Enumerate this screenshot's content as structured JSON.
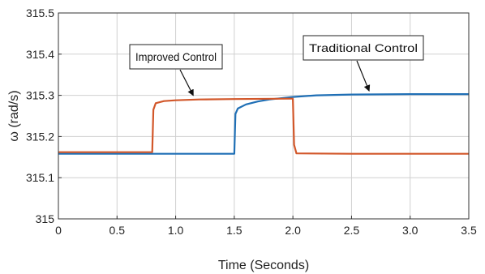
{
  "chart_data": {
    "type": "line",
    "xlabel": "Time (Seconds)",
    "ylabel": "ω (rad/s)",
    "xlim": [
      0,
      3.5
    ],
    "ylim": [
      315,
      315.5
    ],
    "x_ticks": [
      "0",
      "0.5",
      "1.0",
      "1.5",
      "2.0",
      "2.5",
      "3.0",
      "3.5"
    ],
    "y_ticks": [
      "315",
      "315.1",
      "315.2",
      "315.3",
      "315.4",
      "315.5"
    ],
    "grid": true,
    "series": [
      {
        "name": "Traditional Control",
        "color": "#1f6fb5",
        "x": [
          0,
          1.5,
          1.51,
          1.53,
          1.6,
          1.7,
          1.8,
          2.0,
          2.2,
          2.5,
          3.0,
          3.5
        ],
        "y": [
          315.158,
          315.158,
          315.255,
          315.268,
          315.278,
          315.285,
          315.29,
          315.296,
          315.3,
          315.302,
          315.303,
          315.303
        ]
      },
      {
        "name": "Improved Control",
        "color": "#d2572a",
        "x": [
          0,
          0.8,
          0.81,
          0.83,
          0.9,
          1.0,
          1.2,
          1.5,
          1.99,
          2.0,
          2.01,
          2.03,
          2.5,
          3.5
        ],
        "y": [
          315.162,
          315.162,
          315.265,
          315.281,
          315.286,
          315.288,
          315.29,
          315.291,
          315.292,
          315.292,
          315.18,
          315.159,
          315.158,
          315.158
        ]
      }
    ],
    "annotations": [
      {
        "text": "Improved Control",
        "target_x": 1.15,
        "target_y": 315.292
      },
      {
        "text": "Traditional Control",
        "target_x": 2.65,
        "target_y": 315.303
      }
    ]
  }
}
